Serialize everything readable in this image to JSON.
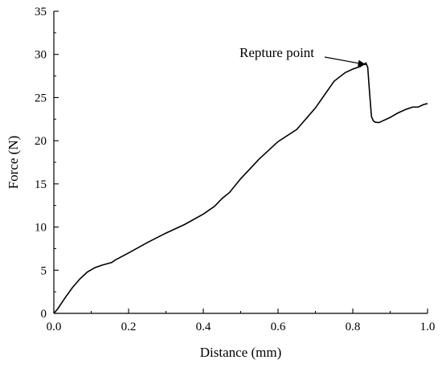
{
  "chart_data": {
    "type": "line",
    "title": "",
    "xlabel": "Distance (mm)",
    "ylabel": "Force (N)",
    "xlim": [
      0,
      1.0
    ],
    "ylim": [
      0,
      35
    ],
    "x_ticks": [
      "0.0",
      "0.2",
      "0.4",
      "0.6",
      "0.8",
      "1.0"
    ],
    "y_ticks": [
      "0",
      "5",
      "10",
      "15",
      "20",
      "25",
      "30",
      "35"
    ],
    "grid": false,
    "legend": "none",
    "line_color": "#000000",
    "series": [
      {
        "x": [
          0.0,
          0.01,
          0.03,
          0.05,
          0.07,
          0.09,
          0.11,
          0.13,
          0.155,
          0.165,
          0.2,
          0.25,
          0.3,
          0.35,
          0.4,
          0.43,
          0.45,
          0.47,
          0.5,
          0.55,
          0.6,
          0.65,
          0.7,
          0.75,
          0.78,
          0.8,
          0.82,
          0.835,
          0.84,
          0.845,
          0.85,
          0.855,
          0.86,
          0.87,
          0.88,
          0.9,
          0.92,
          0.94,
          0.96,
          0.975,
          0.99,
          1.0
        ],
        "y": [
          0.0,
          0.5,
          1.8,
          3.0,
          4.0,
          4.8,
          5.3,
          5.6,
          5.9,
          6.2,
          7.0,
          8.2,
          9.3,
          10.3,
          11.5,
          12.4,
          13.3,
          14.0,
          15.6,
          17.9,
          19.9,
          21.3,
          23.8,
          26.9,
          27.9,
          28.3,
          28.6,
          29.0,
          28.5,
          25.5,
          22.8,
          22.3,
          22.15,
          22.1,
          22.3,
          22.7,
          23.2,
          23.6,
          23.9,
          23.9,
          24.2,
          24.3
        ]
      }
    ],
    "annotations": [
      {
        "text": "Repture point",
        "x": 0.84,
        "y": 29.0
      }
    ]
  }
}
